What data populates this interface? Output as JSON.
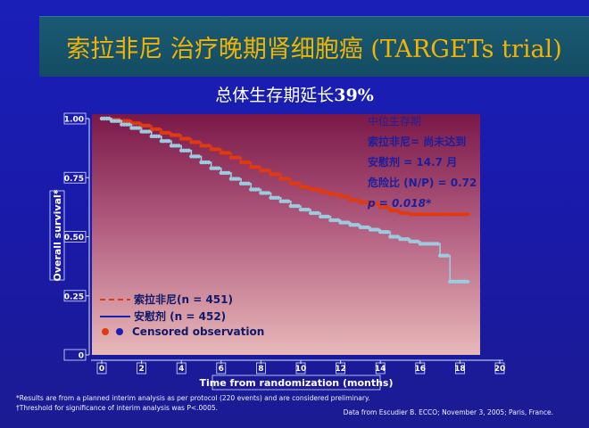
{
  "title": "索拉非尼 治疗晚期肾细胞癌 (TARGETs trial)",
  "subtitle": {
    "text": "总体生存期延长",
    "highlight": "39%"
  },
  "chart_data": {
    "type": "line",
    "title": "总体生存期延长39%",
    "xlabel": "Time from randomization (months)",
    "ylabel": "Overall survival*",
    "xlim": [
      0,
      20
    ],
    "ylim": [
      0,
      1
    ],
    "x_ticks": [
      "0",
      "2",
      "4",
      "6",
      "8",
      "10",
      "12",
      "14",
      "16",
      "18",
      "20"
    ],
    "y_ticks": [
      "0",
      "0.25",
      "0.50",
      "0.75",
      "1.00"
    ],
    "x_tick_values": [
      0,
      2,
      4,
      6,
      8,
      10,
      12,
      14,
      16,
      18,
      20
    ],
    "y_tick_values": [
      0,
      0.25,
      0.5,
      0.75,
      1.0
    ],
    "series": [
      {
        "name": "索拉非尼(n = 451)",
        "color": "#e03a10",
        "dash": true,
        "x": [
          0,
          0.5,
          1,
          1.5,
          2,
          2.5,
          3,
          3.5,
          4,
          4.5,
          5,
          5.5,
          6,
          6.5,
          7,
          7.5,
          8,
          8.5,
          9,
          9.5,
          10,
          10.5,
          11,
          11.5,
          12,
          12.5,
          13,
          13.5,
          14,
          14.5,
          15,
          15.5,
          16,
          16.5,
          17,
          17.5,
          18,
          18.5
        ],
        "y": [
          1.0,
          0.995,
          0.99,
          0.98,
          0.97,
          0.955,
          0.94,
          0.93,
          0.915,
          0.9,
          0.885,
          0.87,
          0.855,
          0.835,
          0.815,
          0.795,
          0.78,
          0.765,
          0.745,
          0.725,
          0.71,
          0.7,
          0.69,
          0.68,
          0.67,
          0.655,
          0.645,
          0.64,
          0.625,
          0.61,
          0.6,
          0.595,
          0.595,
          0.595,
          0.595,
          0.595,
          0.595,
          0.595
        ]
      },
      {
        "name": "安慰剂 (n = 452)",
        "color": "#9ccbe0",
        "dash": false,
        "x": [
          0,
          0.5,
          1,
          1.5,
          2,
          2.5,
          3,
          3.5,
          4,
          4.5,
          5,
          5.5,
          6,
          6.5,
          7,
          7.5,
          8,
          8.5,
          9,
          9.5,
          10,
          10.5,
          11,
          11.5,
          12,
          12.5,
          13,
          13.5,
          14,
          14.5,
          15,
          15.5,
          16,
          16.5,
          17,
          17.5,
          18,
          18.5
        ],
        "y": [
          1.0,
          0.99,
          0.975,
          0.96,
          0.945,
          0.925,
          0.905,
          0.885,
          0.865,
          0.84,
          0.815,
          0.79,
          0.77,
          0.745,
          0.725,
          0.7,
          0.685,
          0.665,
          0.65,
          0.63,
          0.615,
          0.6,
          0.585,
          0.57,
          0.56,
          0.55,
          0.54,
          0.53,
          0.52,
          0.5,
          0.49,
          0.48,
          0.47,
          0.47,
          0.42,
          0.31,
          0.31,
          0.31
        ]
      }
    ],
    "annotations": [
      "中位生存期",
      "索拉非尼= 尚未达到",
      "安慰剂 = 14.7 月",
      "危险比 (N/P) = 0.72",
      "p = 0.018*"
    ],
    "legend": {
      "position": "bottom-left",
      "items": [
        "索拉非尼(n = 451)",
        "安慰剂 (n = 452)",
        "Censored observation"
      ]
    }
  },
  "footnotes": {
    "line1": "*Results are from a planned interim analysis as per protocol (220 events) and are considered preliminary.",
    "line2": "†Threshold for significance of interim analysis was P<.0005.",
    "source": "Data from Escudier B. ECCO; November 3, 2005; Paris, France."
  }
}
